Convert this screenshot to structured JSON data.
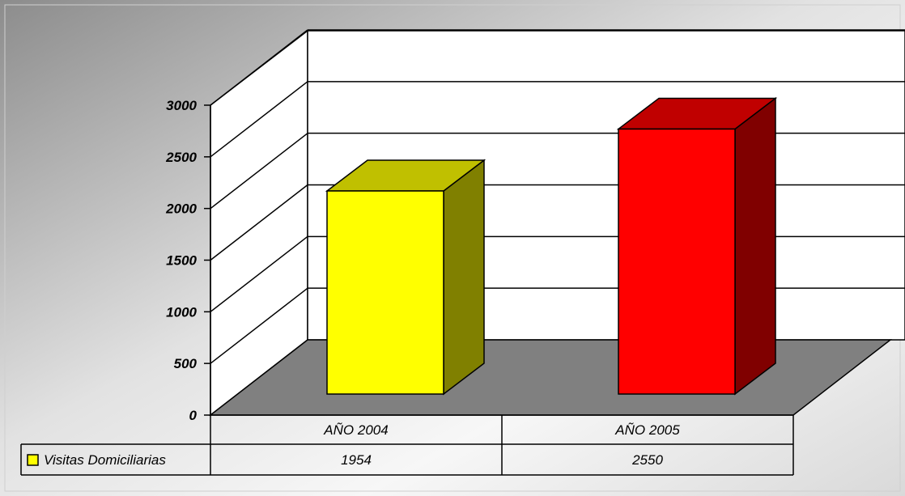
{
  "chart_data": {
    "type": "bar",
    "style": "3d-column-with-data-table",
    "categories": [
      "AÑO 2004",
      "AÑO 2005"
    ],
    "series": [
      {
        "name": "Visitas Domiciliarias",
        "values": [
          1954,
          2550
        ],
        "value_labels": [
          "1954",
          "2550"
        ],
        "colors": [
          "#FFFF00",
          "#FF0000"
        ]
      }
    ],
    "yticks": [
      "0",
      "500",
      "1000",
      "1500",
      "2000",
      "2500",
      "3000"
    ],
    "ylim": [
      0,
      3000
    ],
    "grid": true,
    "legend_placement": "data-table",
    "colors": {
      "floor": "#808080",
      "wall": "#FFFFFF",
      "bar_2004_front": "#FFFF00",
      "bar_2004_top": "#C0C000",
      "bar_2004_side": "#808000",
      "bar_2005_front": "#FF0000",
      "bar_2005_top": "#C00000",
      "bar_2005_side": "#800000"
    }
  }
}
